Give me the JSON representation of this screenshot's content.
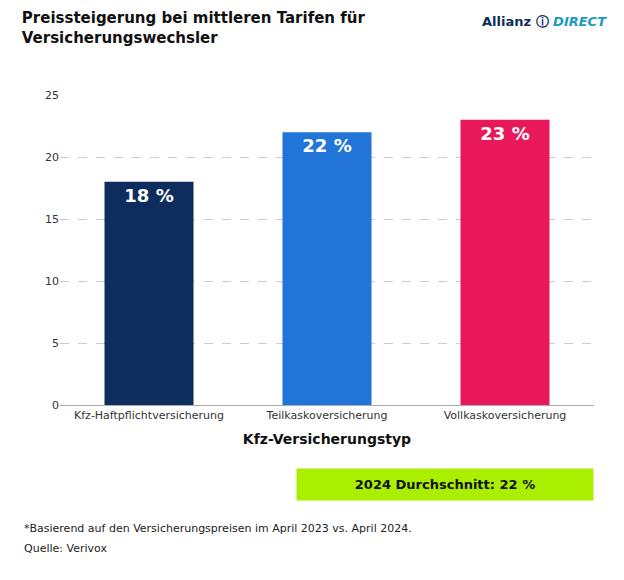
{
  "chart_data": {
    "type": "bar",
    "title": "Preissteigerung bei mittleren Tarifen für\nVersicherungswechsler",
    "xlabel": "Kfz-Versicherungstyp",
    "categories": [
      "Kfz-Haftpflichtversicherung",
      "Teilkaskoversicherung",
      "Vollkaskoversicherung"
    ],
    "values": [
      18,
      22,
      23
    ],
    "value_labels": [
      "18 %",
      "22 %",
      "23 %"
    ],
    "data_labels": true,
    "colors": [
      "#0d2d5e",
      "#2175d9",
      "#e8185a"
    ],
    "ylim": [
      0,
      25
    ],
    "yticks": [
      0,
      5,
      10,
      15,
      20,
      25
    ],
    "grid": true,
    "average": {
      "text": "2024 Durchschnitt: 22 %",
      "color": "#aaee00"
    },
    "footnotes": [
      "*Basierend auf den Versicherungspreisen im April 2023 vs. April 2024.",
      "Quelle: Verivox"
    ],
    "logo": [
      {
        "text": "Allianz",
        "color": "#0d2d5e"
      },
      {
        "text": "ⓘ",
        "color": "#0d2d5e"
      },
      {
        "text": "DIRECT",
        "color": "#1a9bbc"
      }
    ]
  }
}
